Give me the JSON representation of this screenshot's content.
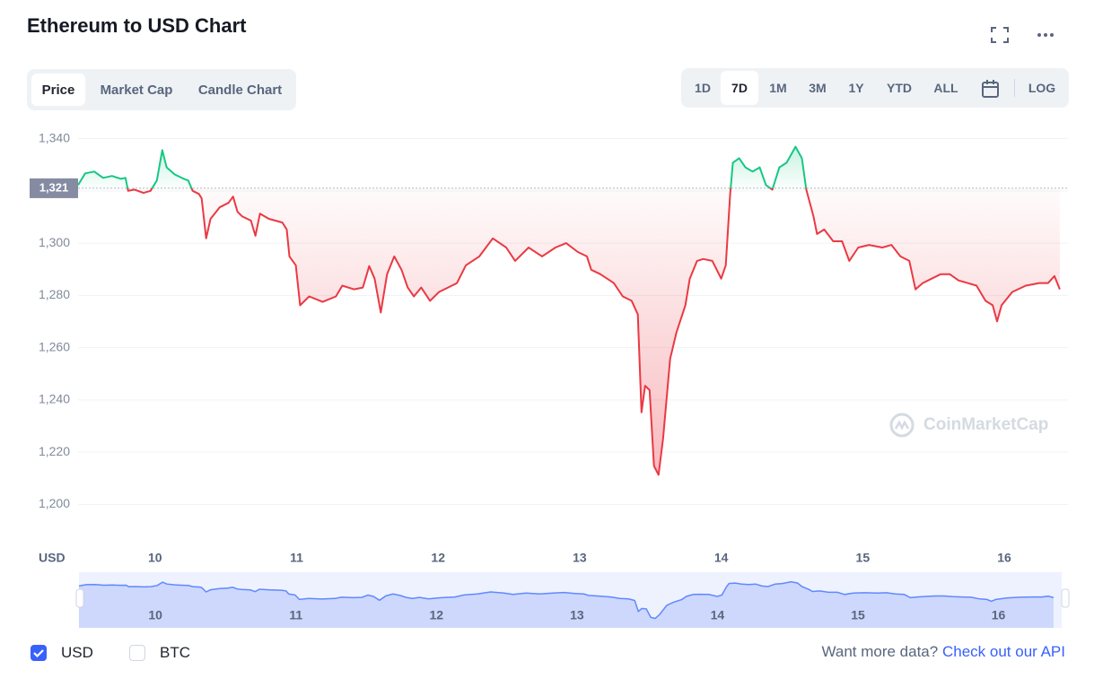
{
  "ui": {
    "title": "Ethereum to USD Chart",
    "tabs": [
      "Price",
      "Market Cap",
      "Candle Chart"
    ],
    "active_tab": 0,
    "ranges": [
      "1D",
      "7D",
      "1M",
      "3M",
      "1Y",
      "YTD",
      "ALL"
    ],
    "active_range": 1,
    "log": "LOG",
    "legend": [
      {
        "label": "USD",
        "checked": true
      },
      {
        "label": "BTC",
        "checked": false
      }
    ],
    "footer_text": "Want more data?",
    "footer_link": "Check out our API",
    "watermark": "CoinMarketCap"
  },
  "chart_data": {
    "type": "line",
    "y_label": "USD",
    "up_color": "#16c784",
    "down_color": "#ea3943",
    "reference": {
      "value": 1321,
      "label": "1,321"
    },
    "xlim": [
      9.456,
      16.45
    ],
    "xticks": [
      10,
      11,
      12,
      13,
      14,
      15,
      16
    ],
    "ylim": [
      1185,
      1345
    ],
    "yticks": [
      {
        "value": 1200,
        "label": "1,200"
      },
      {
        "value": 1220,
        "label": "1,220"
      },
      {
        "value": 1240,
        "label": "1,240"
      },
      {
        "value": 1260,
        "label": "1,260"
      },
      {
        "value": 1280,
        "label": "1,280"
      },
      {
        "value": 1300,
        "label": "1,300"
      },
      {
        "value": 1320,
        "label": "1,320"
      },
      {
        "value": 1340,
        "label": "1,340"
      }
    ],
    "grid": true,
    "x": [
      9.456,
      9.506,
      9.57,
      9.633,
      9.696,
      9.759,
      9.791,
      9.81,
      9.854,
      9.918,
      9.968,
      10.013,
      10.051,
      10.082,
      10.139,
      10.203,
      10.234,
      10.266,
      10.31,
      10.329,
      10.361,
      10.392,
      10.456,
      10.519,
      10.551,
      10.582,
      10.614,
      10.677,
      10.709,
      10.741,
      10.804,
      10.899,
      10.93,
      10.949,
      10.994,
      11.025,
      11.089,
      11.184,
      11.278,
      11.323,
      11.405,
      11.468,
      11.513,
      11.551,
      11.595,
      11.639,
      11.69,
      11.741,
      11.785,
      11.829,
      11.88,
      11.943,
      12.006,
      12.07,
      12.133,
      12.196,
      12.291,
      12.386,
      12.481,
      12.544,
      12.639,
      12.734,
      12.829,
      12.905,
      12.987,
      13.051,
      13.082,
      13.146,
      13.241,
      13.304,
      13.367,
      13.411,
      13.437,
      13.462,
      13.494,
      13.525,
      13.557,
      13.589,
      13.639,
      13.684,
      13.747,
      13.778,
      13.829,
      13.873,
      13.937,
      14.0,
      14.032,
      14.063,
      14.082,
      14.127,
      14.171,
      14.222,
      14.272,
      14.316,
      14.361,
      14.411,
      14.462,
      14.525,
      14.57,
      14.601,
      14.652,
      14.677,
      14.728,
      14.791,
      14.854,
      14.905,
      14.968,
      15.044,
      15.139,
      15.203,
      15.266,
      15.329,
      15.373,
      15.424,
      15.487,
      15.551,
      15.614,
      15.677,
      15.741,
      15.804,
      15.867,
      15.918,
      15.949,
      15.981,
      16.057,
      16.152,
      16.247,
      16.31,
      16.354,
      16.392
    ],
    "values": [
      1322.2,
      1326.7,
      1327.4,
      1325.0,
      1325.7,
      1324.6,
      1325.0,
      1320.0,
      1320.5,
      1319.2,
      1320.0,
      1324.0,
      1335.6,
      1329.0,
      1326.3,
      1324.6,
      1324.0,
      1320.0,
      1318.8,
      1317.1,
      1301.8,
      1309.3,
      1313.7,
      1315.4,
      1317.8,
      1312.0,
      1310.3,
      1308.6,
      1302.8,
      1311.3,
      1309.3,
      1307.9,
      1305.2,
      1294.9,
      1291.5,
      1276.2,
      1279.6,
      1277.5,
      1279.6,
      1283.7,
      1282.3,
      1283.0,
      1291.2,
      1286.4,
      1273.4,
      1288.1,
      1294.9,
      1289.8,
      1283.0,
      1279.6,
      1283.0,
      1277.9,
      1281.3,
      1283.0,
      1284.7,
      1291.5,
      1294.9,
      1301.8,
      1298.3,
      1293.2,
      1298.3,
      1294.9,
      1298.3,
      1300.0,
      1296.6,
      1294.9,
      1289.8,
      1288.1,
      1284.7,
      1279.6,
      1277.9,
      1272.7,
      1235.2,
      1245.4,
      1243.7,
      1214.7,
      1211.3,
      1225.0,
      1255.7,
      1265.9,
      1276.2,
      1286.4,
      1293.2,
      1293.9,
      1293.2,
      1286.4,
      1291.5,
      1318.8,
      1330.8,
      1332.5,
      1329.0,
      1327.4,
      1329.0,
      1322.2,
      1320.5,
      1329.0,
      1330.8,
      1336.9,
      1332.5,
      1320.5,
      1310.3,
      1303.5,
      1305.2,
      1300.7,
      1300.7,
      1293.2,
      1298.3,
      1299.3,
      1298.3,
      1299.3,
      1294.9,
      1293.2,
      1282.3,
      1284.7,
      1286.4,
      1288.1,
      1288.1,
      1285.7,
      1284.7,
      1283.7,
      1277.9,
      1276.2,
      1270.0,
      1276.2,
      1281.3,
      1283.7,
      1284.7,
      1284.7,
      1287.4,
      1282.3
    ]
  }
}
